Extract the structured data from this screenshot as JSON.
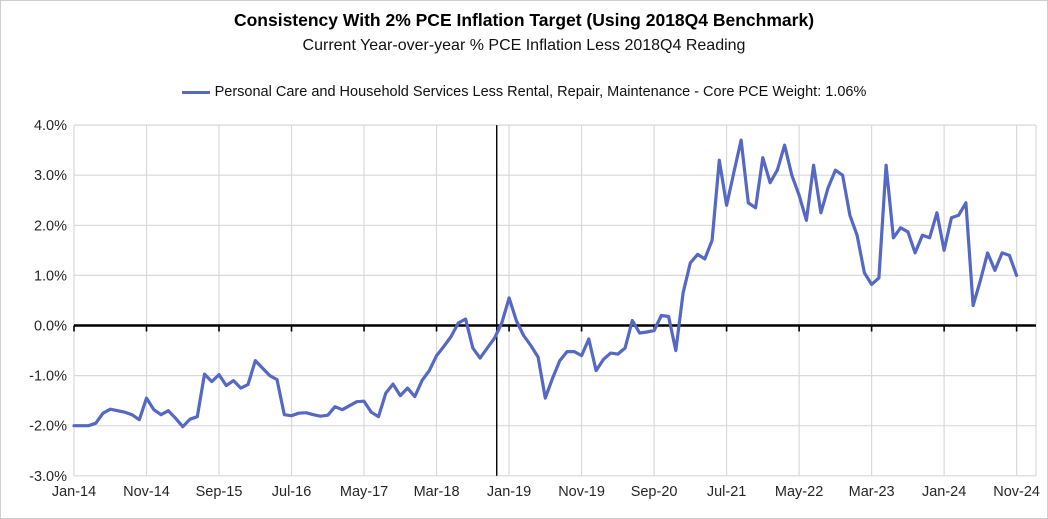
{
  "chart_data": {
    "type": "line",
    "title": "Consistency With 2% PCE Inflation Target (Using 2018Q4 Benchmark)",
    "subtitle": "Current Year-over-year % PCE Inflation Less 2018Q4 Reading",
    "xlabel": "",
    "ylabel": "",
    "ylim": [
      -3.0,
      4.0
    ],
    "grid": true,
    "legend_position": "top-center",
    "y_tick_labels": [
      "4.0%",
      "3.0%",
      "2.0%",
      "1.0%",
      "0.0%",
      "-1.0%",
      "-2.0%",
      "-3.0%"
    ],
    "y_tick_values": [
      4,
      3,
      2,
      1,
      0,
      -1,
      -2,
      -3
    ],
    "x_start_month": "Jan-2014",
    "x_end_month": "Nov-2024",
    "x_tick_labels": [
      "Jan-14",
      "Nov-14",
      "Sep-15",
      "Jul-16",
      "May-17",
      "Mar-18",
      "Jan-19",
      "Nov-19",
      "Sep-20",
      "Jul-21",
      "May-22",
      "Mar-23",
      "Jan-24",
      "Nov-24"
    ],
    "x_tick_month_indices": [
      0,
      10,
      20,
      30,
      40,
      50,
      60,
      70,
      80,
      90,
      100,
      110,
      120,
      130
    ],
    "annotations": {
      "horizontal_zero_axis": {
        "value": 0,
        "color": "#000000"
      },
      "vertical_benchmark_line": {
        "label": "2018Q4 benchmark",
        "month_index": 58.3,
        "color": "#000000"
      }
    },
    "series": [
      {
        "name": "Personal Care and Household Services Less Rental, Repair, Maintenance  - Core PCE Weight: 1.06%",
        "color": "#5468c4",
        "values": [
          -2.0,
          -2.0,
          -2.0,
          -1.95,
          -1.75,
          -1.67,
          -1.7,
          -1.73,
          -1.78,
          -1.88,
          -1.45,
          -1.68,
          -1.78,
          -1.7,
          -1.85,
          -2.02,
          -1.87,
          -1.82,
          -0.97,
          -1.12,
          -0.98,
          -1.2,
          -1.1,
          -1.25,
          -1.18,
          -0.7,
          -0.85,
          -1.0,
          -1.08,
          -1.78,
          -1.8,
          -1.75,
          -1.74,
          -1.78,
          -1.81,
          -1.79,
          -1.62,
          -1.68,
          -1.6,
          -1.52,
          -1.51,
          -1.73,
          -1.82,
          -1.35,
          -1.17,
          -1.4,
          -1.25,
          -1.42,
          -1.1,
          -0.9,
          -0.6,
          -0.42,
          -0.22,
          0.05,
          0.13,
          -0.45,
          -0.65,
          -0.45,
          -0.25,
          0.05,
          0.55,
          0.1,
          -0.2,
          -0.4,
          -0.63,
          -1.45,
          -1.05,
          -0.7,
          -0.52,
          -0.52,
          -0.6,
          -0.27,
          -0.9,
          -0.68,
          -0.55,
          -0.57,
          -0.45,
          0.1,
          -0.15,
          -0.13,
          -0.1,
          0.2,
          0.18,
          -0.5,
          0.65,
          1.25,
          1.42,
          1.33,
          1.7,
          3.3,
          2.4,
          3.05,
          3.7,
          2.45,
          2.35,
          3.35,
          2.85,
          3.1,
          3.6,
          3.0,
          2.6,
          2.1,
          3.2,
          2.25,
          2.75,
          3.1,
          3.0,
          2.2,
          1.8,
          1.05,
          0.82,
          0.95,
          3.2,
          1.75,
          1.95,
          1.87,
          1.45,
          1.8,
          1.75,
          2.25,
          1.5,
          2.15,
          2.2,
          2.45,
          0.4,
          0.9,
          1.45,
          1.1,
          1.45,
          1.4,
          1.0
        ]
      }
    ],
    "colors": {
      "gridline": "#d9d9d9",
      "axis_text": "#262626",
      "zero_axis": "#000000",
      "series_line": "#5468c4"
    }
  }
}
